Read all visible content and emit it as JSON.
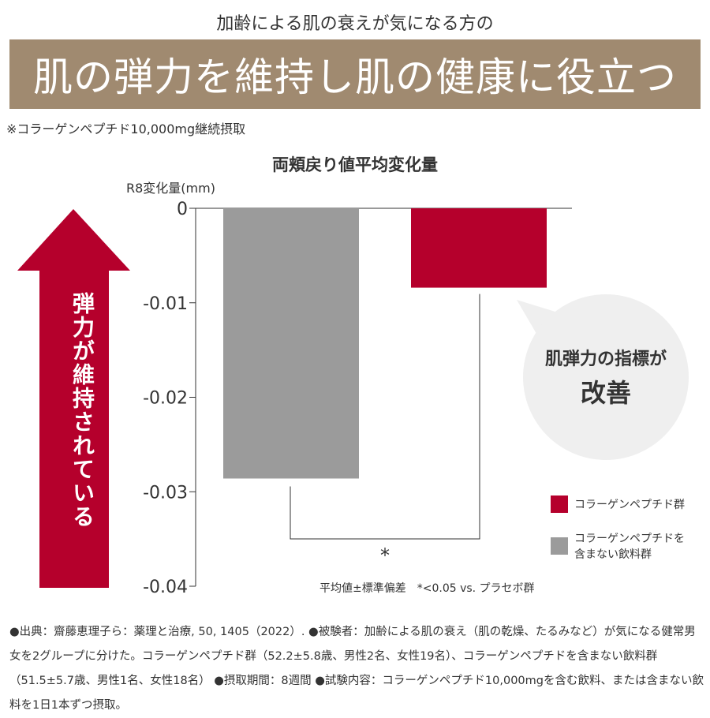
{
  "header": {
    "subtitle": "加齢による肌の衰えが気になる方の",
    "banner": "肌の弾力を維持し肌の健康に役立つ",
    "note": "※コラーゲンペプチド10,000mg継続摂取"
  },
  "arrow": {
    "label": "弾力が維持されている",
    "color": "#b5002c"
  },
  "bubble": {
    "line1": "肌弾力の指標が",
    "line2": "改善"
  },
  "chart_data": {
    "type": "bar",
    "title": "両頬戻り値平均変化量",
    "ylabel": "R8変化量(mm)",
    "xlabel": "",
    "ylim": [
      -0.04,
      0
    ],
    "yticks": [
      "0",
      "-0.01",
      "-0.02",
      "-0.03",
      "-0.04"
    ],
    "ytick_values": [
      0,
      -0.01,
      -0.02,
      -0.03,
      -0.04
    ],
    "categories": [
      "コラーゲンペプチドを含まない飲料群",
      "コラーゲンペプチド群"
    ],
    "values": [
      -0.0286,
      -0.0084
    ],
    "colors": [
      "#9b9b9b",
      "#b5002c"
    ],
    "significance": "*",
    "legend": [
      {
        "label": "コラーゲンペプチド群",
        "color": "#b5002c"
      },
      {
        "label_1": "コラーゲンペプチドを",
        "label_2": "含まない飲料群",
        "color": "#9b9b9b"
      }
    ],
    "legend_position": "bottom-right",
    "stat_note": "平均値±標準偏差　*<0.05 vs. プラセボ群"
  },
  "footnote": "●出典：齋藤恵理子ら：薬理と治療, 50, 1405（2022）. ●被験者：加齢による肌の衰え（肌の乾燥、たるみなど）が気になる健常男女を2グループに分けた。コラーゲンペプチド群（52.2±5.8歳、男性2名、女性19名）、コラーゲンペプチドを含まない飲料群（51.5±5.7歳、男性1名、女性18名） ●摂取期間：8週間 ●試験内容：コラーゲンペプチド10,000mgを含む飲料、または含まない飲料を1日1本ずつ摂取。"
}
